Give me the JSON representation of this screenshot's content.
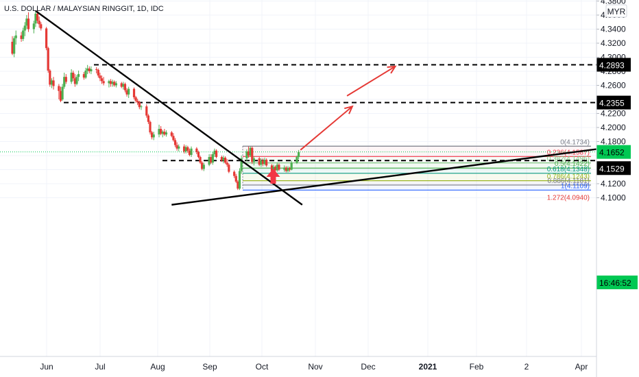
{
  "chart_data": {
    "type": "candlestick",
    "title": "U.S. DOLLAR / MALAYSIAN RINGGIT, 1D, IDC",
    "currency": "MYR",
    "ylim": [
      4.09,
      4.385
    ],
    "y_ticks": [
      "4.3800",
      "4.3600",
      "4.3400",
      "4.3200",
      "4.3000",
      "4.2800",
      "4.2600",
      "4.2400",
      "4.2200",
      "4.2000",
      "4.1800",
      "4.1600",
      "4.1400",
      "4.1200",
      "4.1000"
    ],
    "x_labels": [
      "Jun",
      "Jul",
      "Aug",
      "Sep",
      "Oct",
      "Nov",
      "Dec",
      "2021",
      "Feb",
      "2",
      "Apr"
    ],
    "candles": [
      {
        "day": "2020-05-13",
        "o": 4.322,
        "h": 4.33,
        "l": 4.303,
        "c": 4.305
      },
      {
        "day": "2020-05-14",
        "o": 4.305,
        "h": 4.33,
        "l": 4.3,
        "c": 4.327
      },
      {
        "day": "2020-05-15",
        "o": 4.327,
        "h": 4.338,
        "l": 4.318,
        "c": 4.331
      },
      {
        "day": "2020-05-18",
        "o": 4.331,
        "h": 4.336,
        "l": 4.322,
        "c": 4.326
      },
      {
        "day": "2020-05-19",
        "o": 4.326,
        "h": 4.342,
        "l": 4.323,
        "c": 4.338
      },
      {
        "day": "2020-05-20",
        "o": 4.338,
        "h": 4.35,
        "l": 4.33,
        "c": 4.345
      },
      {
        "day": "2020-05-21",
        "o": 4.345,
        "h": 4.36,
        "l": 4.34,
        "c": 4.355
      },
      {
        "day": "2020-05-22",
        "o": 4.355,
        "h": 4.364,
        "l": 4.336,
        "c": 4.34
      },
      {
        "day": "2020-05-25",
        "o": 4.34,
        "h": 4.352,
        "l": 4.334,
        "c": 4.348
      },
      {
        "day": "2020-05-26",
        "o": 4.348,
        "h": 4.366,
        "l": 4.343,
        "c": 4.362
      },
      {
        "day": "2020-05-27",
        "o": 4.362,
        "h": 4.368,
        "l": 4.348,
        "c": 4.352
      },
      {
        "day": "2020-05-28",
        "o": 4.352,
        "h": 4.358,
        "l": 4.342,
        "c": 4.347
      },
      {
        "day": "2020-05-29",
        "o": 4.347,
        "h": 4.35,
        "l": 4.338,
        "c": 4.341
      },
      {
        "day": "2020-06-01",
        "o": 4.341,
        "h": 4.343,
        "l": 4.31,
        "c": 4.313
      },
      {
        "day": "2020-06-02",
        "o": 4.313,
        "h": 4.315,
        "l": 4.278,
        "c": 4.281
      },
      {
        "day": "2020-06-03",
        "o": 4.281,
        "h": 4.283,
        "l": 4.258,
        "c": 4.261
      },
      {
        "day": "2020-06-04",
        "o": 4.261,
        "h": 4.27,
        "l": 4.256,
        "c": 4.267
      },
      {
        "day": "2020-06-05",
        "o": 4.267,
        "h": 4.272,
        "l": 4.254,
        "c": 4.259
      },
      {
        "day": "2020-06-08",
        "o": 4.259,
        "h": 4.262,
        "l": 4.24,
        "c": 4.252
      },
      {
        "day": "2020-06-09",
        "o": 4.252,
        "h": 4.258,
        "l": 4.236,
        "c": 4.238
      },
      {
        "day": "2020-06-10",
        "o": 4.24,
        "h": 4.262,
        "l": 4.238,
        "c": 4.258
      },
      {
        "day": "2020-06-11",
        "o": 4.258,
        "h": 4.278,
        "l": 4.255,
        "c": 4.272
      },
      {
        "day": "2020-06-12",
        "o": 4.272,
        "h": 4.276,
        "l": 4.262,
        "c": 4.265
      },
      {
        "day": "2020-06-15",
        "o": 4.265,
        "h": 4.283,
        "l": 4.262,
        "c": 4.278
      },
      {
        "day": "2020-06-16",
        "o": 4.278,
        "h": 4.281,
        "l": 4.266,
        "c": 4.27
      },
      {
        "day": "2020-06-17",
        "o": 4.27,
        "h": 4.276,
        "l": 4.258,
        "c": 4.262
      },
      {
        "day": "2020-06-18",
        "o": 4.262,
        "h": 4.275,
        "l": 4.26,
        "c": 4.272
      },
      {
        "day": "2020-06-19",
        "o": 4.272,
        "h": 4.281,
        "l": 4.266,
        "c": 4.276
      },
      {
        "day": "2020-06-22",
        "o": 4.276,
        "h": 4.279,
        "l": 4.268,
        "c": 4.271
      },
      {
        "day": "2020-06-23",
        "o": 4.271,
        "h": 4.285,
        "l": 4.269,
        "c": 4.281
      },
      {
        "day": "2020-06-24",
        "o": 4.281,
        "h": 4.289,
        "l": 4.276,
        "c": 4.284
      },
      {
        "day": "2020-06-25",
        "o": 4.284,
        "h": 4.287,
        "l": 4.277,
        "c": 4.28
      },
      {
        "day": "2020-06-26",
        "o": 4.28,
        "h": 4.287,
        "l": 4.276,
        "c": 4.283
      },
      {
        "day": "2020-06-29",
        "o": 4.283,
        "h": 4.286,
        "l": 4.277,
        "c": 4.282
      },
      {
        "day": "2020-06-30",
        "o": 4.282,
        "h": 4.284,
        "l": 4.271,
        "c": 4.274
      },
      {
        "day": "2020-07-01",
        "o": 4.274,
        "h": 4.278,
        "l": 4.266,
        "c": 4.27
      },
      {
        "day": "2020-07-02",
        "o": 4.27,
        "h": 4.274,
        "l": 4.262,
        "c": 4.266
      },
      {
        "day": "2020-07-03",
        "o": 4.266,
        "h": 4.272,
        "l": 4.26,
        "c": 4.263
      },
      {
        "day": "2020-07-06",
        "o": 4.263,
        "h": 4.268,
        "l": 4.257,
        "c": 4.266
      },
      {
        "day": "2020-07-07",
        "o": 4.266,
        "h": 4.269,
        "l": 4.258,
        "c": 4.262
      },
      {
        "day": "2020-07-08",
        "o": 4.262,
        "h": 4.268,
        "l": 4.258,
        "c": 4.265
      },
      {
        "day": "2020-07-09",
        "o": 4.265,
        "h": 4.267,
        "l": 4.258,
        "c": 4.26
      },
      {
        "day": "2020-07-10",
        "o": 4.26,
        "h": 4.266,
        "l": 4.257,
        "c": 4.263
      },
      {
        "day": "2020-07-13",
        "o": 4.263,
        "h": 4.265,
        "l": 4.256,
        "c": 4.258
      },
      {
        "day": "2020-07-14",
        "o": 4.258,
        "h": 4.265,
        "l": 4.254,
        "c": 4.262
      },
      {
        "day": "2020-07-15",
        "o": 4.262,
        "h": 4.264,
        "l": 4.25,
        "c": 4.253
      },
      {
        "day": "2020-07-16",
        "o": 4.253,
        "h": 4.256,
        "l": 4.244,
        "c": 4.247
      },
      {
        "day": "2020-07-17",
        "o": 4.247,
        "h": 4.258,
        "l": 4.242,
        "c": 4.255
      },
      {
        "day": "2020-07-20",
        "o": 4.255,
        "h": 4.257,
        "l": 4.24,
        "c": 4.243
      },
      {
        "day": "2020-07-21",
        "o": 4.243,
        "h": 4.245,
        "l": 4.235,
        "c": 4.238
      },
      {
        "day": "2020-07-22",
        "o": 4.238,
        "h": 4.241,
        "l": 4.232,
        "c": 4.236
      },
      {
        "day": "2020-07-23",
        "o": 4.236,
        "h": 4.238,
        "l": 4.226,
        "c": 4.229
      },
      {
        "day": "2020-07-24",
        "o": 4.229,
        "h": 4.232,
        "l": 4.225,
        "c": 4.23
      },
      {
        "day": "2020-07-27",
        "o": 4.23,
        "h": 4.233,
        "l": 4.214,
        "c": 4.217
      },
      {
        "day": "2020-07-28",
        "o": 4.217,
        "h": 4.219,
        "l": 4.205,
        "c": 4.208
      },
      {
        "day": "2020-07-29",
        "o": 4.208,
        "h": 4.21,
        "l": 4.19,
        "c": 4.193
      },
      {
        "day": "2020-07-30",
        "o": 4.193,
        "h": 4.195,
        "l": 4.183,
        "c": 4.186
      },
      {
        "day": "2020-07-31",
        "o": 4.186,
        "h": 4.194,
        "l": 4.182,
        "c": 4.19
      },
      {
        "day": "2020-08-03",
        "o": 4.19,
        "h": 4.204,
        "l": 4.186,
        "c": 4.198
      },
      {
        "day": "2020-08-04",
        "o": 4.198,
        "h": 4.202,
        "l": 4.189,
        "c": 4.191
      },
      {
        "day": "2020-08-05",
        "o": 4.191,
        "h": 4.196,
        "l": 4.186,
        "c": 4.194
      },
      {
        "day": "2020-08-06",
        "o": 4.194,
        "h": 4.198,
        "l": 4.188,
        "c": 4.19
      },
      {
        "day": "2020-08-07",
        "o": 4.19,
        "h": 4.196,
        "l": 4.187,
        "c": 4.193
      },
      {
        "day": "2020-08-10",
        "o": 4.193,
        "h": 4.195,
        "l": 4.186,
        "c": 4.188
      },
      {
        "day": "2020-08-11",
        "o": 4.188,
        "h": 4.192,
        "l": 4.18,
        "c": 4.182
      },
      {
        "day": "2020-08-12",
        "o": 4.182,
        "h": 4.185,
        "l": 4.172,
        "c": 4.175
      },
      {
        "day": "2020-08-13",
        "o": 4.175,
        "h": 4.179,
        "l": 4.167,
        "c": 4.17
      },
      {
        "day": "2020-08-14",
        "o": 4.17,
        "h": 4.176,
        "l": 4.166,
        "c": 4.173
      },
      {
        "day": "2020-08-17",
        "o": 4.173,
        "h": 4.176,
        "l": 4.163,
        "c": 4.166
      },
      {
        "day": "2020-08-18",
        "o": 4.166,
        "h": 4.175,
        "l": 4.163,
        "c": 4.172
      },
      {
        "day": "2020-08-19",
        "o": 4.172,
        "h": 4.174,
        "l": 4.164,
        "c": 4.167
      },
      {
        "day": "2020-08-20",
        "o": 4.167,
        "h": 4.17,
        "l": 4.159,
        "c": 4.161
      },
      {
        "day": "2020-08-21",
        "o": 4.161,
        "h": 4.173,
        "l": 4.158,
        "c": 4.17
      },
      {
        "day": "2020-08-24",
        "o": 4.17,
        "h": 4.172,
        "l": 4.162,
        "c": 4.165
      },
      {
        "day": "2020-08-25",
        "o": 4.165,
        "h": 4.167,
        "l": 4.156,
        "c": 4.158
      },
      {
        "day": "2020-08-26",
        "o": 4.158,
        "h": 4.16,
        "l": 4.148,
        "c": 4.15
      },
      {
        "day": "2020-08-27",
        "o": 4.15,
        "h": 4.152,
        "l": 4.139,
        "c": 4.141
      },
      {
        "day": "2020-08-28",
        "o": 4.141,
        "h": 4.15,
        "l": 4.138,
        "c": 4.147
      },
      {
        "day": "2020-08-31",
        "o": 4.147,
        "h": 4.162,
        "l": 4.145,
        "c": 4.158
      },
      {
        "day": "2020-09-01",
        "o": 4.158,
        "h": 4.162,
        "l": 4.148,
        "c": 4.15
      },
      {
        "day": "2020-09-02",
        "o": 4.15,
        "h": 4.165,
        "l": 4.147,
        "c": 4.162
      },
      {
        "day": "2020-09-03",
        "o": 4.162,
        "h": 4.17,
        "l": 4.158,
        "c": 4.167
      },
      {
        "day": "2020-09-04",
        "o": 4.167,
        "h": 4.169,
        "l": 4.156,
        "c": 4.158
      },
      {
        "day": "2020-09-07",
        "o": 4.158,
        "h": 4.16,
        "l": 4.151,
        "c": 4.153
      },
      {
        "day": "2020-09-08",
        "o": 4.153,
        "h": 4.16,
        "l": 4.149,
        "c": 4.157
      },
      {
        "day": "2020-09-09",
        "o": 4.157,
        "h": 4.159,
        "l": 4.148,
        "c": 4.15
      },
      {
        "day": "2020-09-10",
        "o": 4.15,
        "h": 4.155,
        "l": 4.144,
        "c": 4.147
      },
      {
        "day": "2020-09-11",
        "o": 4.147,
        "h": 4.149,
        "l": 4.135,
        "c": 4.137
      },
      {
        "day": "2020-09-14",
        "o": 4.137,
        "h": 4.139,
        "l": 4.128,
        "c": 4.131
      },
      {
        "day": "2020-09-15",
        "o": 4.131,
        "h": 4.134,
        "l": 4.121,
        "c": 4.123
      },
      {
        "day": "2020-09-16",
        "o": 4.123,
        "h": 4.125,
        "l": 4.111,
        "c": 4.113
      },
      {
        "day": "2020-09-17",
        "o": 4.113,
        "h": 4.142,
        "l": 4.111,
        "c": 4.138
      },
      {
        "day": "2020-09-18",
        "o": 4.138,
        "h": 4.16,
        "l": 4.134,
        "c": 4.156
      },
      {
        "day": "2020-09-21",
        "o": 4.156,
        "h": 4.169,
        "l": 4.152,
        "c": 4.166
      },
      {
        "day": "2020-09-22",
        "o": 4.166,
        "h": 4.173,
        "l": 4.157,
        "c": 4.16
      },
      {
        "day": "2020-09-23",
        "o": 4.16,
        "h": 4.173,
        "l": 4.158,
        "c": 4.171
      },
      {
        "day": "2020-09-24",
        "o": 4.171,
        "h": 4.173,
        "l": 4.148,
        "c": 4.151
      },
      {
        "day": "2020-09-25",
        "o": 4.151,
        "h": 4.159,
        "l": 4.146,
        "c": 4.156
      },
      {
        "day": "2020-09-28",
        "o": 4.156,
        "h": 4.158,
        "l": 4.145,
        "c": 4.147
      },
      {
        "day": "2020-09-29",
        "o": 4.147,
        "h": 4.156,
        "l": 4.144,
        "c": 4.153
      },
      {
        "day": "2020-09-30",
        "o": 4.153,
        "h": 4.156,
        "l": 4.145,
        "c": 4.148
      },
      {
        "day": "2020-10-01",
        "o": 4.148,
        "h": 4.157,
        "l": 4.146,
        "c": 4.154
      },
      {
        "day": "2020-10-02",
        "o": 4.154,
        "h": 4.156,
        "l": 4.144,
        "c": 4.146
      },
      {
        "day": "2020-10-05",
        "o": 4.146,
        "h": 4.148,
        "l": 4.136,
        "c": 4.138
      },
      {
        "day": "2020-10-06",
        "o": 4.138,
        "h": 4.147,
        "l": 4.135,
        "c": 4.144
      },
      {
        "day": "2020-10-07",
        "o": 4.144,
        "h": 4.146,
        "l": 4.137,
        "c": 4.139
      },
      {
        "day": "2020-10-08",
        "o": 4.139,
        "h": 4.15,
        "l": 4.137,
        "c": 4.147
      },
      {
        "day": "2020-10-09",
        "o": 4.147,
        "h": 4.149,
        "l": 4.138,
        "c": 4.14
      },
      {
        "day": "2020-10-12",
        "o": 4.14,
        "h": 4.146,
        "l": 4.137,
        "c": 4.143
      },
      {
        "day": "2020-10-13",
        "o": 4.143,
        "h": 4.145,
        "l": 4.136,
        "c": 4.138
      },
      {
        "day": "2020-10-14",
        "o": 4.138,
        "h": 4.145,
        "l": 4.136,
        "c": 4.142
      },
      {
        "day": "2020-10-15",
        "o": 4.142,
        "h": 4.144,
        "l": 4.137,
        "c": 4.14
      },
      {
        "day": "2020-10-16",
        "o": 4.14,
        "h": 4.153,
        "l": 4.139,
        "c": 4.15
      },
      {
        "day": "2020-10-19",
        "o": 4.15,
        "h": 4.16,
        "l": 4.148,
        "c": 4.158
      },
      {
        "day": "2020-10-20",
        "o": 4.158,
        "h": 4.168,
        "l": 4.155,
        "c": 4.1652
      }
    ],
    "fib_levels": [
      {
        "ratio": "0",
        "value": 4.1734,
        "label": "0(4.1734)",
        "color": "#787b86"
      },
      {
        "ratio": "0.236",
        "value": 4.1587,
        "label": "0.236(4.1587)",
        "color": "#f23645"
      },
      {
        "ratio": "0.382",
        "value": 4.1496,
        "label": "0.382(4.1496)",
        "color": "#81c784"
      },
      {
        "ratio": "0.5",
        "value": 4.1422,
        "label": "0.5(4.1422)",
        "color": "#4caf50"
      },
      {
        "ratio": "0.618",
        "value": 4.1348,
        "label": "0.618(4.1348)",
        "color": "#089981"
      },
      {
        "ratio": "0.786",
        "value": 4.1243,
        "label": "0.786(4.1243)",
        "color": "#9ab520"
      },
      {
        "ratio": "0.886",
        "value": 4.1181,
        "label": "0.886(4.1181)",
        "color": "#787b86"
      },
      {
        "ratio": "1",
        "value": 4.1109,
        "label": "1(4.1109)",
        "color": "#2962ff"
      },
      {
        "ratio": "1.272",
        "value": 4.094,
        "label": "1.272(4.0940)",
        "color": "#e53935"
      }
    ],
    "horizontal_levels": [
      {
        "value": 4.2893,
        "label": "4.2893",
        "style": "dashed"
      },
      {
        "value": 4.2355,
        "label": "4.2355",
        "style": "dashed"
      },
      {
        "value": 4.1529,
        "label": "4.1529",
        "style": "dashed"
      }
    ],
    "price_labels": {
      "last_price": "4.1652",
      "countdown": "16:46:52",
      "level_4_2893": "4.2893",
      "level_4_2355": "4.2355",
      "level_4_1529": "4.1529"
    },
    "trendlines": [
      {
        "name": "down-trendline",
        "from": {
          "day": "2020-05-26",
          "price": 4.366
        },
        "to": {
          "day": "2020-10-22",
          "price": 4.09
        }
      },
      {
        "name": "up-trendline",
        "from": {
          "day": "2020-08-10",
          "price": 4.09
        },
        "to": {
          "day": "2021-04-10",
          "price": 4.171
        }
      }
    ],
    "projection_arrows": [
      {
        "from": {
          "day": "2020-10-21",
          "price": 4.168
        },
        "to": {
          "day": "2020-11-19",
          "price": 4.23
        }
      },
      {
        "from": {
          "day": "2020-11-16",
          "price": 4.245
        },
        "to": {
          "day": "2020-12-13",
          "price": 4.287
        }
      }
    ],
    "marker": {
      "type": "up-arrow",
      "day": "2020-10-05",
      "price": 4.12,
      "color": "#f23645"
    },
    "colors": {
      "up": "#26a69a",
      "up_fill": "#4caf50",
      "down": "#e53935",
      "accent_green": "#00c853",
      "grid": "#f0f3fa"
    }
  }
}
